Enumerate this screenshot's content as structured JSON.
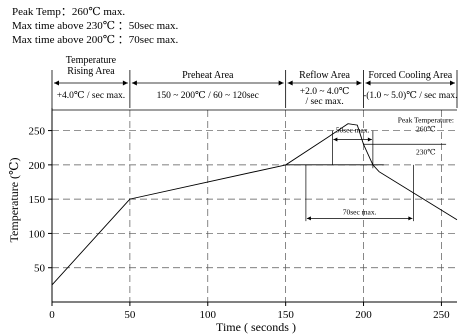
{
  "specs": {
    "line1": "Peak Temp：260℃ max.",
    "line2": "Max time above 230℃ ：50sec max.",
    "line3": "Max time above 200℃ ：70sec max."
  },
  "zones": [
    {
      "name": "Temperature\nRising Area",
      "rate": "+4.0℃ / sec max.",
      "x_start": 0,
      "x_end": 50
    },
    {
      "name": "Preheat Area",
      "rate": "150 ~ 200℃ / 60 ~ 120sec",
      "x_start": 50,
      "x_end": 150
    },
    {
      "name": "Reflow Area",
      "rate": "+2.0 ~ 4.0℃\n/ sec max.",
      "x_start": 150,
      "x_end": 200
    },
    {
      "name": "Forced Cooling Area",
      "rate": "-(1.0 ~ 5.0)℃ / sec max.",
      "x_start": 200,
      "x_end": 260
    }
  ],
  "chart_data": {
    "type": "line",
    "xlabel": "Time ( seconds )",
    "ylabel": "Temperature (℃)",
    "xlim": [
      0,
      260
    ],
    "ylim": [
      0,
      280
    ],
    "x_ticks": [
      0,
      50,
      100,
      150,
      200,
      250
    ],
    "y_ticks": [
      50,
      100,
      150,
      200,
      250
    ],
    "grid": "dashed",
    "series": [
      {
        "x": [
          0,
          50,
          150,
          177,
          190,
          196,
          200,
          206,
          210,
          260
        ],
        "y": [
          25,
          150,
          200,
          240,
          260,
          258,
          230,
          200,
          190,
          120
        ]
      }
    ],
    "annotations": {
      "peak_label": "Peak Temperature:\n260℃",
      "label_230": "230℃",
      "label_50sec": "50sec max.",
      "label_70sec": "70sec max.",
      "span_50sec": [
        180,
        206
      ],
      "span_70sec": [
        163,
        232
      ]
    }
  }
}
